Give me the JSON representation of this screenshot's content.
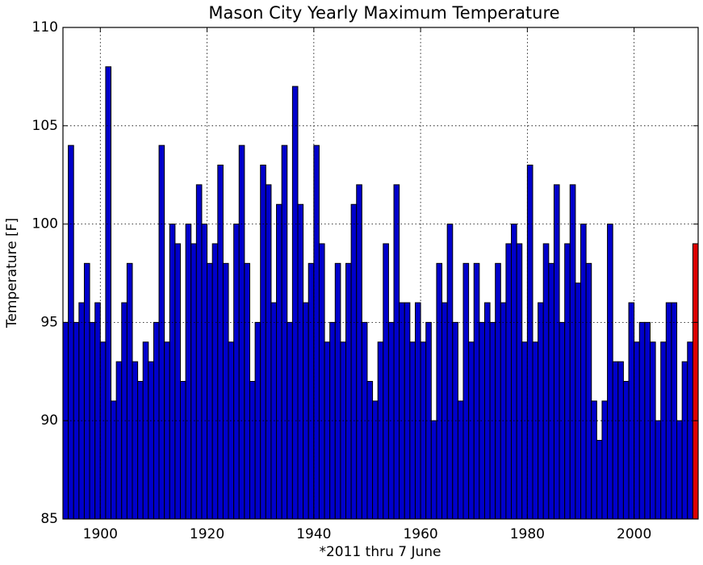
{
  "chart_data": {
    "type": "bar",
    "title": "Mason City Yearly Maximum Temperature",
    "xlabel": "*2011 thru 7 June",
    "ylabel": "Temperature [F]",
    "x": [
      1893,
      1894,
      1895,
      1896,
      1897,
      1898,
      1899,
      1900,
      1901,
      1902,
      1903,
      1904,
      1905,
      1906,
      1907,
      1908,
      1909,
      1910,
      1911,
      1912,
      1913,
      1914,
      1915,
      1916,
      1917,
      1918,
      1919,
      1920,
      1921,
      1922,
      1923,
      1924,
      1925,
      1926,
      1927,
      1928,
      1929,
      1930,
      1931,
      1932,
      1933,
      1934,
      1935,
      1936,
      1937,
      1938,
      1939,
      1940,
      1941,
      1942,
      1943,
      1944,
      1945,
      1946,
      1947,
      1948,
      1949,
      1950,
      1951,
      1952,
      1953,
      1954,
      1955,
      1956,
      1957,
      1958,
      1959,
      1960,
      1961,
      1962,
      1963,
      1964,
      1965,
      1966,
      1967,
      1968,
      1969,
      1970,
      1971,
      1972,
      1973,
      1974,
      1975,
      1976,
      1977,
      1978,
      1979,
      1980,
      1981,
      1982,
      1983,
      1984,
      1985,
      1986,
      1987,
      1988,
      1989,
      1990,
      1991,
      1992,
      1993,
      1994,
      1995,
      1996,
      1997,
      1998,
      1999,
      2000,
      2001,
      2002,
      2003,
      2004,
      2005,
      2006,
      2007,
      2008,
      2009,
      2010,
      2011
    ],
    "values": [
      95,
      104,
      95,
      96,
      98,
      95,
      96,
      94,
      108,
      91,
      93,
      96,
      98,
      93,
      92,
      94,
      93,
      95,
      104,
      94,
      100,
      99,
      92,
      100,
      99,
      102,
      100,
      98,
      99,
      103,
      98,
      94,
      100,
      104,
      98,
      92,
      95,
      103,
      102,
      96,
      101,
      104,
      95,
      107,
      101,
      96,
      98,
      104,
      99,
      94,
      95,
      98,
      94,
      98,
      101,
      102,
      95,
      92,
      91,
      94,
      99,
      95,
      102,
      96,
      96,
      94,
      96,
      94,
      95,
      90,
      98,
      96,
      100,
      95,
      91,
      98,
      94,
      98,
      95,
      96,
      95,
      98,
      96,
      99,
      100,
      99,
      94,
      103,
      94,
      96,
      99,
      98,
      102,
      95,
      99,
      102,
      97,
      100,
      98,
      91,
      89,
      91,
      100,
      93,
      93,
      92,
      96,
      94,
      95,
      95,
      94,
      90,
      94,
      96,
      96,
      90,
      93,
      94,
      99
    ],
    "colors": [
      "#0000cc",
      "#0000cc",
      "#0000cc",
      "#0000cc",
      "#0000cc",
      "#0000cc",
      "#0000cc",
      "#0000cc",
      "#0000cc",
      "#0000cc",
      "#0000cc",
      "#0000cc",
      "#0000cc",
      "#0000cc",
      "#0000cc",
      "#0000cc",
      "#0000cc",
      "#0000cc",
      "#0000cc",
      "#0000cc",
      "#0000cc",
      "#0000cc",
      "#0000cc",
      "#0000cc",
      "#0000cc",
      "#0000cc",
      "#0000cc",
      "#0000cc",
      "#0000cc",
      "#0000cc",
      "#0000cc",
      "#0000cc",
      "#0000cc",
      "#0000cc",
      "#0000cc",
      "#0000cc",
      "#0000cc",
      "#0000cc",
      "#0000cc",
      "#0000cc",
      "#0000cc",
      "#0000cc",
      "#0000cc",
      "#0000cc",
      "#0000cc",
      "#0000cc",
      "#0000cc",
      "#0000cc",
      "#0000cc",
      "#0000cc",
      "#0000cc",
      "#0000cc",
      "#0000cc",
      "#0000cc",
      "#0000cc",
      "#0000cc",
      "#0000cc",
      "#0000cc",
      "#0000cc",
      "#0000cc",
      "#0000cc",
      "#0000cc",
      "#0000cc",
      "#0000cc",
      "#0000cc",
      "#0000cc",
      "#0000cc",
      "#0000cc",
      "#0000cc",
      "#0000cc",
      "#0000cc",
      "#0000cc",
      "#0000cc",
      "#0000cc",
      "#0000cc",
      "#0000cc",
      "#0000cc",
      "#0000cc",
      "#0000cc",
      "#0000cc",
      "#0000cc",
      "#0000cc",
      "#0000cc",
      "#0000cc",
      "#0000cc",
      "#0000cc",
      "#0000cc",
      "#0000cc",
      "#0000cc",
      "#0000cc",
      "#0000cc",
      "#0000cc",
      "#0000cc",
      "#0000cc",
      "#0000cc",
      "#0000cc",
      "#0000cc",
      "#0000cc",
      "#0000cc",
      "#0000cc",
      "#0000cc",
      "#0000cc",
      "#0000cc",
      "#0000cc",
      "#0000cc",
      "#0000cc",
      "#0000cc",
      "#0000cc",
      "#0000cc",
      "#0000cc",
      "#0000cc",
      "#0000cc",
      "#0000cc",
      "#0000cc",
      "#0000cc",
      "#0000cc",
      "#0000cc",
      "#0000cc",
      "#dd0000"
    ],
    "xlim": [
      1893,
      2012
    ],
    "xticks": [
      1900,
      1920,
      1940,
      1960,
      1980,
      2000
    ],
    "ylim": [
      85,
      110
    ],
    "yticks": [
      85,
      90,
      95,
      100,
      105,
      110
    ],
    "grid": true
  }
}
